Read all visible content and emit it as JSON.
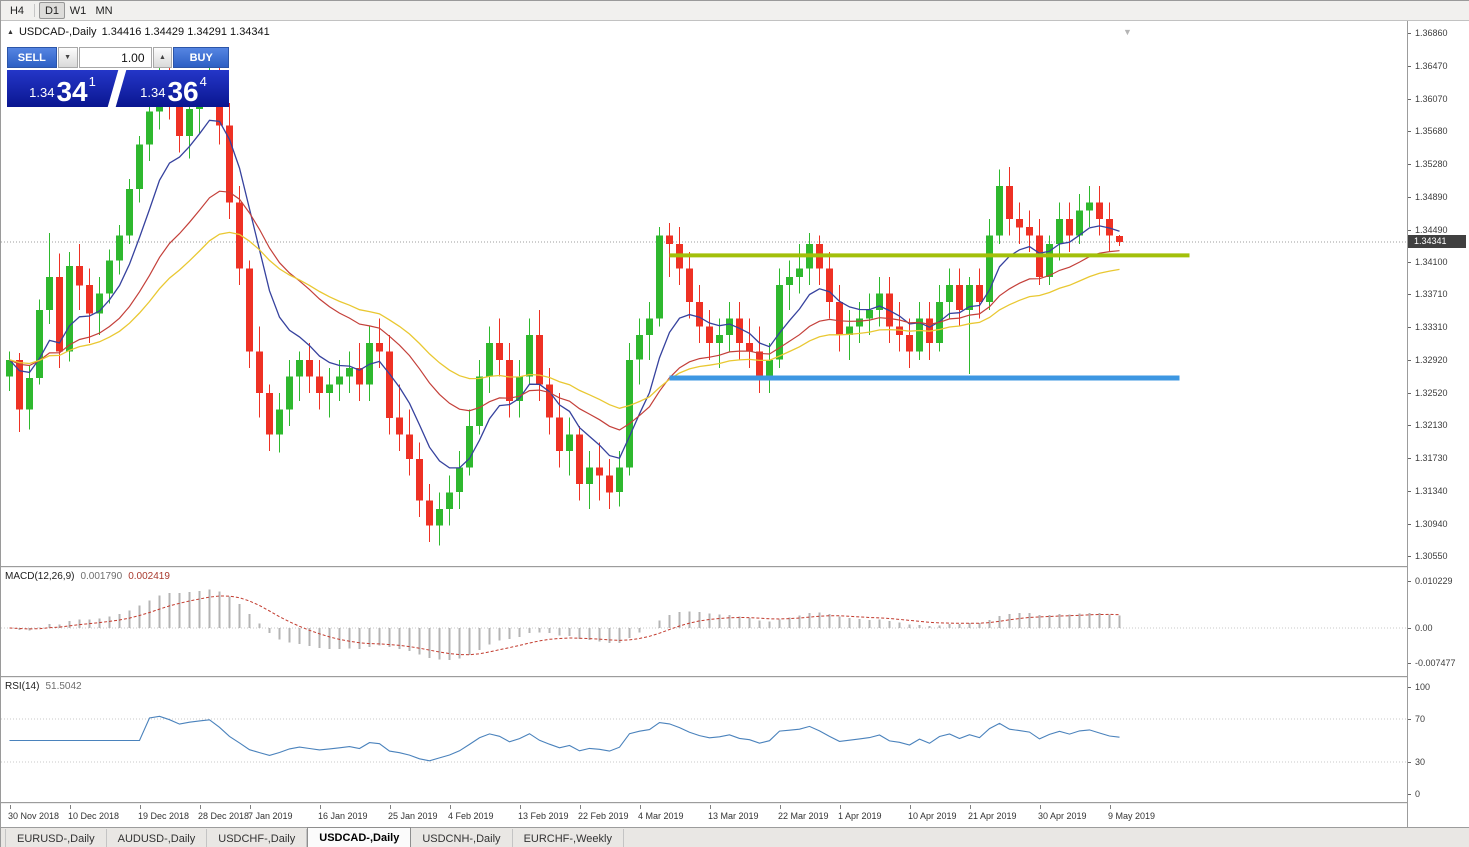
{
  "toolbar": {
    "timeframes": [
      {
        "label": "H4",
        "active": false
      },
      {
        "label": "D1",
        "active": true
      },
      {
        "label": "W1",
        "active": false
      },
      {
        "label": "MN",
        "active": false
      }
    ]
  },
  "chart": {
    "title": "USDCAD-,Daily",
    "ohlc": "1.34416 1.34429 1.34291 1.34341",
    "current_price": "1.34341"
  },
  "trade": {
    "sell_label": "SELL",
    "buy_label": "BUY",
    "volume": "1.00",
    "sell": {
      "base": "1.34",
      "big": "34",
      "sup": "1"
    },
    "buy": {
      "base": "1.34",
      "big": "36",
      "sup": "4"
    }
  },
  "icons": {
    "collapse": "▲",
    "shift": "▼",
    "spin_up": "▲",
    "spin_down": "▼"
  },
  "tabs": [
    {
      "label": "EURUSD-,Daily",
      "active": false
    },
    {
      "label": "AUDUSD-,Daily",
      "active": false
    },
    {
      "label": "USDCHF-,Daily",
      "active": false
    },
    {
      "label": "USDCAD-,Daily",
      "active": true
    },
    {
      "label": "USDCNH-,Daily",
      "active": false
    },
    {
      "label": "EURCHF-,Weekly",
      "active": false
    }
  ],
  "chart_data": {
    "type": "candlestick",
    "symbol": "USDCAD",
    "timeframe": "Daily",
    "last_ohlc": {
      "open": 1.34416,
      "high": 1.34429,
      "low": 1.34291,
      "close": 1.34341
    },
    "bid": 1.34341,
    "price_axis_labels": [
      "1.36860",
      "1.36470",
      "1.36070",
      "1.35680",
      "1.35280",
      "1.34890",
      "1.34490",
      "1.34100",
      "1.33710",
      "1.33310",
      "1.32920",
      "1.32520",
      "1.32130",
      "1.31730",
      "1.31340",
      "1.30940",
      "1.30550"
    ],
    "price_axis_range": [
      1.3043,
      1.3701
    ],
    "colors": {
      "up": "#2eb82e",
      "down": "#ee3124",
      "bid_line": "#9e9e9e"
    },
    "moving_averages": [
      {
        "name": "fast-ma",
        "period": 8,
        "color": "#36429e",
        "width": 1.3
      },
      {
        "name": "mid-ma",
        "period": 21,
        "color": "#c4403a",
        "width": 1.2
      },
      {
        "name": "slow-ma",
        "period": 34,
        "color": "#e9c832",
        "width": 1.3
      }
    ],
    "levels": [
      {
        "name": "resistance-line",
        "price": 1.3418,
        "color": "#a3c00a",
        "width": 4,
        "from_i": 66,
        "to_i": 118
      },
      {
        "name": "support-line",
        "price": 1.327,
        "color": "#3d97e2",
        "width": 5,
        "from_i": 66,
        "to_i": 117
      }
    ],
    "date_ticks": [
      {
        "label": "30 Nov 2018",
        "i": 0
      },
      {
        "label": "10 Dec 2018",
        "i": 6
      },
      {
        "label": "19 Dec 2018",
        "i": 13
      },
      {
        "label": "28 Dec 2018",
        "i": 19
      },
      {
        "label": "7 Jan 2019",
        "i": 24
      },
      {
        "label": "16 Jan 2019",
        "i": 31
      },
      {
        "label": "25 Jan 2019",
        "i": 38
      },
      {
        "label": "4 Feb 2019",
        "i": 44
      },
      {
        "label": "13 Feb 2019",
        "i": 51
      },
      {
        "label": "22 Feb 2019",
        "i": 57
      },
      {
        "label": "4 Mar 2019",
        "i": 63
      },
      {
        "label": "13 Mar 2019",
        "i": 70
      },
      {
        "label": "22 Mar 2019",
        "i": 77
      },
      {
        "label": "1 Apr 2019",
        "i": 83
      },
      {
        "label": "10 Apr 2019",
        "i": 90
      },
      {
        "label": "21 Apr 2019",
        "i": 96
      },
      {
        "label": "30 Apr 2019",
        "i": 103
      },
      {
        "label": "9 May 2019",
        "i": 110
      }
    ],
    "candles": [
      [
        "2018-11-30",
        1.3272,
        1.3302,
        1.3254,
        1.3292
      ],
      [
        "2018-12-03",
        1.3292,
        1.33,
        1.3205,
        1.3232
      ],
      [
        "2018-12-04",
        1.3232,
        1.3285,
        1.3208,
        1.327
      ],
      [
        "2018-12-05",
        1.327,
        1.3365,
        1.3262,
        1.3352
      ],
      [
        "2018-12-06",
        1.3352,
        1.3445,
        1.3335,
        1.3392
      ],
      [
        "2018-12-07",
        1.3392,
        1.342,
        1.3282,
        1.3302
      ],
      [
        "2018-12-10",
        1.3302,
        1.3422,
        1.329,
        1.3405
      ],
      [
        "2018-12-11",
        1.3405,
        1.3432,
        1.3352,
        1.3382
      ],
      [
        "2018-12-12",
        1.3382,
        1.3402,
        1.3312,
        1.3348
      ],
      [
        "2018-12-13",
        1.3348,
        1.3392,
        1.3322,
        1.3372
      ],
      [
        "2018-12-14",
        1.3372,
        1.3425,
        1.336,
        1.3412
      ],
      [
        "2018-12-17",
        1.3412,
        1.3455,
        1.3395,
        1.3442
      ],
      [
        "2018-12-18",
        1.3442,
        1.351,
        1.3432,
        1.3498
      ],
      [
        "2018-12-19",
        1.3498,
        1.3562,
        1.3482,
        1.3552
      ],
      [
        "2018-12-20",
        1.3552,
        1.3605,
        1.3532,
        1.3592
      ],
      [
        "2018-12-21",
        1.3592,
        1.3648,
        1.357,
        1.3632
      ],
      [
        "2018-12-24",
        1.3632,
        1.3652,
        1.3582,
        1.3602
      ],
      [
        "2018-12-26",
        1.3602,
        1.3622,
        1.3542,
        1.3562
      ],
      [
        "2018-12-27",
        1.3562,
        1.3615,
        1.3535,
        1.3595
      ],
      [
        "2018-12-28",
        1.3595,
        1.3632,
        1.3565,
        1.3618
      ],
      [
        "2018-12-31",
        1.3618,
        1.3655,
        1.36,
        1.3638
      ],
      [
        "2019-01-02",
        1.3638,
        1.3652,
        1.3552,
        1.3575
      ],
      [
        "2019-01-03",
        1.3575,
        1.3602,
        1.3462,
        1.3482
      ],
      [
        "2019-01-04",
        1.3482,
        1.3502,
        1.3382,
        1.3402
      ],
      [
        "2019-01-07",
        1.3402,
        1.3412,
        1.3282,
        1.3302
      ],
      [
        "2019-01-08",
        1.3302,
        1.3332,
        1.3222,
        1.3252
      ],
      [
        "2019-01-09",
        1.3252,
        1.3262,
        1.3182,
        1.3202
      ],
      [
        "2019-01-10",
        1.3202,
        1.3252,
        1.318,
        1.3232
      ],
      [
        "2019-01-11",
        1.3232,
        1.3292,
        1.3212,
        1.3272
      ],
      [
        "2019-01-14",
        1.3272,
        1.3302,
        1.3242,
        1.3292
      ],
      [
        "2019-01-15",
        1.3292,
        1.3312,
        1.3252,
        1.3272
      ],
      [
        "2019-01-16",
        1.3272,
        1.3292,
        1.3232,
        1.3252
      ],
      [
        "2019-01-17",
        1.3252,
        1.3282,
        1.3222,
        1.3262
      ],
      [
        "2019-01-18",
        1.3262,
        1.3292,
        1.3242,
        1.3272
      ],
      [
        "2019-01-21",
        1.3272,
        1.3302,
        1.3252,
        1.3282
      ],
      [
        "2019-01-22",
        1.3282,
        1.3312,
        1.3242,
        1.3262
      ],
      [
        "2019-01-23",
        1.3262,
        1.3332,
        1.3242,
        1.3312
      ],
      [
        "2019-01-24",
        1.3312,
        1.3342,
        1.3282,
        1.3302
      ],
      [
        "2019-01-25",
        1.3302,
        1.3322,
        1.3202,
        1.3222
      ],
      [
        "2019-01-28",
        1.3222,
        1.3262,
        1.3182,
        1.3202
      ],
      [
        "2019-01-29",
        1.3202,
        1.3232,
        1.3152,
        1.3172
      ],
      [
        "2019-01-30",
        1.3172,
        1.3192,
        1.3102,
        1.3122
      ],
      [
        "2019-01-31",
        1.3122,
        1.3142,
        1.3072,
        1.3092
      ],
      [
        "2019-02-01",
        1.3092,
        1.3132,
        1.3068,
        1.3112
      ],
      [
        "2019-02-04",
        1.3112,
        1.3152,
        1.3092,
        1.3132
      ],
      [
        "2019-02-05",
        1.3132,
        1.3182,
        1.3112,
        1.3162
      ],
      [
        "2019-02-06",
        1.3162,
        1.3232,
        1.3152,
        1.3212
      ],
      [
        "2019-02-07",
        1.3212,
        1.3292,
        1.3202,
        1.3272
      ],
      [
        "2019-02-08",
        1.3272,
        1.3332,
        1.3252,
        1.3312
      ],
      [
        "2019-02-11",
        1.3312,
        1.3342,
        1.3272,
        1.3292
      ],
      [
        "2019-02-12",
        1.3292,
        1.3312,
        1.3222,
        1.3242
      ],
      [
        "2019-02-13",
        1.3242,
        1.3292,
        1.3222,
        1.3272
      ],
      [
        "2019-02-14",
        1.3272,
        1.3342,
        1.3262,
        1.3322
      ],
      [
        "2019-02-15",
        1.3322,
        1.3352,
        1.3242,
        1.3262
      ],
      [
        "2019-02-19",
        1.3262,
        1.3282,
        1.3202,
        1.3222
      ],
      [
        "2019-02-20",
        1.3222,
        1.3252,
        1.3162,
        1.3182
      ],
      [
        "2019-02-21",
        1.3182,
        1.3222,
        1.3152,
        1.3202
      ],
      [
        "2019-02-22",
        1.3202,
        1.3212,
        1.3122,
        1.3142
      ],
      [
        "2019-02-25",
        1.3142,
        1.3182,
        1.3112,
        1.3162
      ],
      [
        "2019-02-26",
        1.3162,
        1.3192,
        1.3122,
        1.3152
      ],
      [
        "2019-02-27",
        1.3152,
        1.3172,
        1.3112,
        1.3132
      ],
      [
        "2019-02-28",
        1.3132,
        1.3182,
        1.3115,
        1.3162
      ],
      [
        "2019-03-01",
        1.3162,
        1.3312,
        1.3152,
        1.3292
      ],
      [
        "2019-03-04",
        1.3292,
        1.3342,
        1.3262,
        1.3322
      ],
      [
        "2019-03-05",
        1.3322,
        1.3362,
        1.3292,
        1.3342
      ],
      [
        "2019-03-06",
        1.3342,
        1.3452,
        1.3332,
        1.3442
      ],
      [
        "2019-03-07",
        1.3442,
        1.3457,
        1.3392,
        1.3432
      ],
      [
        "2019-03-08",
        1.3432,
        1.3452,
        1.3382,
        1.3402
      ],
      [
        "2019-03-11",
        1.3402,
        1.3422,
        1.3342,
        1.3362
      ],
      [
        "2019-03-12",
        1.3362,
        1.3382,
        1.3312,
        1.3332
      ],
      [
        "2019-03-13",
        1.3332,
        1.3352,
        1.3292,
        1.3312
      ],
      [
        "2019-03-14",
        1.3312,
        1.3342,
        1.3282,
        1.3322
      ],
      [
        "2019-03-15",
        1.3322,
        1.3362,
        1.3302,
        1.3342
      ],
      [
        "2019-03-18",
        1.3342,
        1.3362,
        1.3292,
        1.3312
      ],
      [
        "2019-03-19",
        1.3312,
        1.3342,
        1.3282,
        1.3302
      ],
      [
        "2019-03-20",
        1.3302,
        1.3332,
        1.3252,
        1.3272
      ],
      [
        "2019-03-21",
        1.3272,
        1.3312,
        1.3252,
        1.3292
      ],
      [
        "2019-03-22",
        1.3292,
        1.3402,
        1.3282,
        1.3382
      ],
      [
        "2019-03-25",
        1.3382,
        1.3412,
        1.3352,
        1.3392
      ],
      [
        "2019-03-26",
        1.3392,
        1.3432,
        1.3372,
        1.3402
      ],
      [
        "2019-03-27",
        1.3402,
        1.3445,
        1.3382,
        1.3432
      ],
      [
        "2019-03-28",
        1.3432,
        1.3442,
        1.3382,
        1.3402
      ],
      [
        "2019-03-29",
        1.3402,
        1.3422,
        1.3342,
        1.3362
      ],
      [
        "2019-04-01",
        1.3362,
        1.3382,
        1.3302,
        1.3322
      ],
      [
        "2019-04-02",
        1.3322,
        1.3352,
        1.3292,
        1.3332
      ],
      [
        "2019-04-03",
        1.3332,
        1.3362,
        1.3312,
        1.3342
      ],
      [
        "2019-04-04",
        1.3342,
        1.3372,
        1.3322,
        1.3352
      ],
      [
        "2019-04-05",
        1.3352,
        1.3392,
        1.3332,
        1.3372
      ],
      [
        "2019-04-08",
        1.3372,
        1.3392,
        1.3312,
        1.3332
      ],
      [
        "2019-04-09",
        1.3332,
        1.3362,
        1.3302,
        1.3322
      ],
      [
        "2019-04-10",
        1.3322,
        1.3342,
        1.3282,
        1.3302
      ],
      [
        "2019-04-11",
        1.3302,
        1.3362,
        1.3292,
        1.3342
      ],
      [
        "2019-04-12",
        1.3342,
        1.3362,
        1.3292,
        1.3312
      ],
      [
        "2019-04-15",
        1.3312,
        1.3382,
        1.3302,
        1.3362
      ],
      [
        "2019-04-16",
        1.3362,
        1.3402,
        1.3342,
        1.3382
      ],
      [
        "2019-04-17",
        1.3382,
        1.3402,
        1.3332,
        1.3352
      ],
      [
        "2019-04-18",
        1.3352,
        1.3392,
        1.3275,
        1.3382
      ],
      [
        "2019-04-22",
        1.3382,
        1.3402,
        1.3342,
        1.3362
      ],
      [
        "2019-04-23",
        1.3362,
        1.3462,
        1.3352,
        1.3442
      ],
      [
        "2019-04-24",
        1.3442,
        1.3522,
        1.3432,
        1.3502
      ],
      [
        "2019-04-25",
        1.3502,
        1.3525,
        1.3442,
        1.3462
      ],
      [
        "2019-04-26",
        1.3462,
        1.3482,
        1.3432,
        1.3452
      ],
      [
        "2019-04-29",
        1.3452,
        1.3472,
        1.3422,
        1.3442
      ],
      [
        "2019-04-30",
        1.3442,
        1.3462,
        1.3382,
        1.3392
      ],
      [
        "2019-05-01",
        1.3392,
        1.3442,
        1.3382,
        1.3432
      ],
      [
        "2019-05-02",
        1.3432,
        1.3482,
        1.3412,
        1.3462
      ],
      [
        "2019-05-03",
        1.3462,
        1.3482,
        1.3422,
        1.3442
      ],
      [
        "2019-05-06",
        1.3442,
        1.3492,
        1.3432,
        1.3472
      ],
      [
        "2019-05-07",
        1.3472,
        1.3502,
        1.3452,
        1.3482
      ],
      [
        "2019-05-08",
        1.3482,
        1.3502,
        1.3442,
        1.3462
      ],
      [
        "2019-05-09",
        1.3462,
        1.3482,
        1.3422,
        1.3442
      ],
      [
        "2019-05-10",
        1.34416,
        1.34429,
        1.34291,
        1.34341
      ]
    ],
    "macd": {
      "label": "MACD(12,26,9)",
      "value_main": "0.001790",
      "value_signal": "0.002419",
      "params": [
        12,
        26,
        9
      ],
      "range": [
        -0.0104,
        0.0128
      ],
      "axis_labels": [
        "0.010229",
        "0.00",
        "-0.007477"
      ],
      "histogram_color": "#b4b4b4",
      "signal_color": "#c23b2e"
    },
    "rsi": {
      "label": "RSI(14)",
      "value": "51.5042",
      "period": 14,
      "range": [
        0,
        100
      ],
      "level_lines": [
        70,
        30
      ],
      "axis_labels": [
        "100",
        "70",
        "30",
        "0"
      ],
      "line_color": "#4a82bc"
    }
  }
}
